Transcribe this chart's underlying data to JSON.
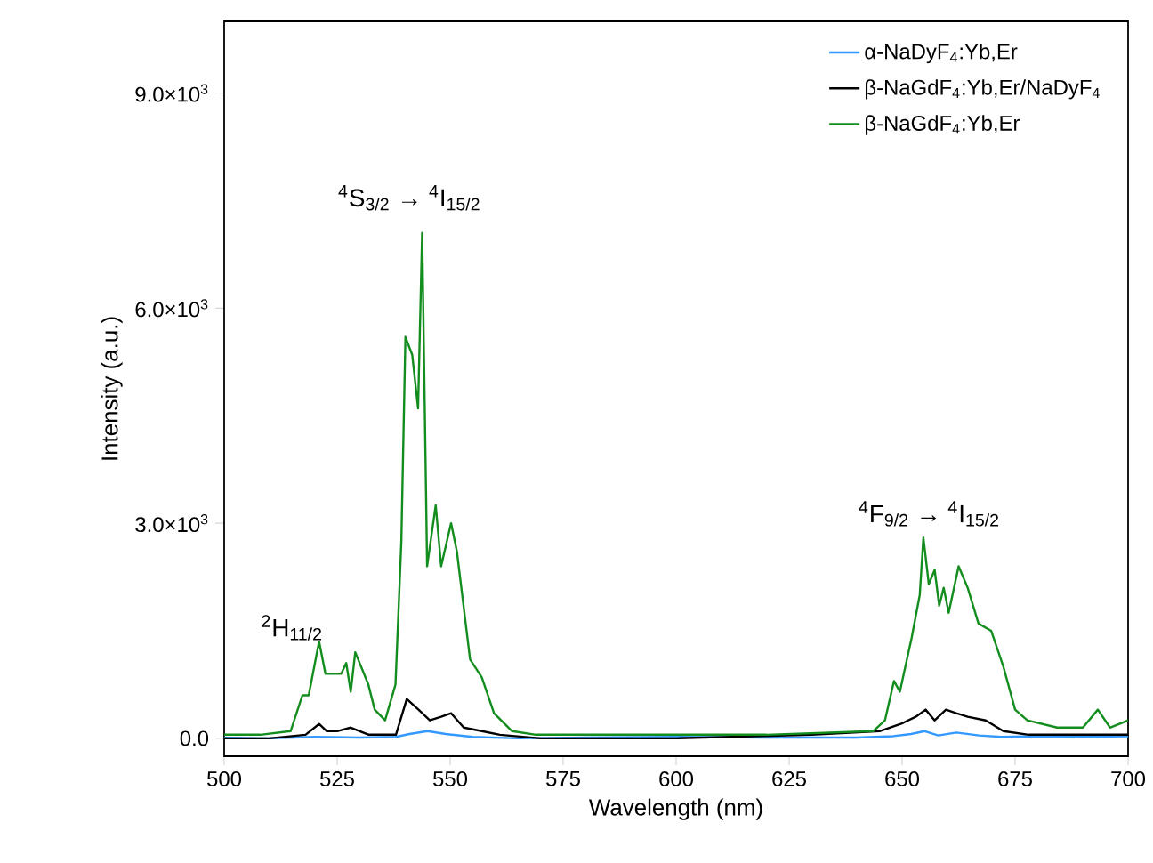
{
  "chart_data": {
    "type": "line",
    "xlabel": "Wavelength (nm)",
    "ylabel": "Intensity (a.u.)",
    "xlim": [
      500,
      700
    ],
    "xticks": [
      500,
      525,
      550,
      575,
      600,
      625,
      650,
      675,
      700
    ],
    "ylim": [
      -250,
      10000
    ],
    "yticks": [
      {
        "value": 0,
        "label": "0.0"
      },
      {
        "value": 3000,
        "label": "3.0×10$^{3}$"
      },
      {
        "value": 6000,
        "label": "6.0×10$^{3}$"
      },
      {
        "value": 9000,
        "label": "9.0×10$^{3}$"
      }
    ],
    "legend": "top right",
    "grid": false,
    "marker": "none",
    "line_style": "solid",
    "series": [
      {
        "name": "α-NaDyF$_{4}$:Yb,Er",
        "color": "#3399ff",
        "x": [
          500,
          510,
          520,
          530,
          538,
          541,
          545,
          549,
          555,
          565,
          580,
          600,
          620,
          640,
          648,
          652,
          655,
          658,
          662,
          667,
          672,
          680,
          690,
          700
        ],
        "values": [
          10,
          0,
          20,
          10,
          20,
          60,
          100,
          60,
          20,
          0,
          10,
          20,
          10,
          10,
          30,
          60,
          100,
          40,
          80,
          40,
          20,
          30,
          20,
          30
        ]
      },
      {
        "name": "β-NaGdF$_{4}$:Yb,Er/NaDyF$_{4}$",
        "color": "#000000",
        "x": [
          500,
          510,
          518,
          521,
          522.7,
          525,
          528,
          532,
          538,
          540.4,
          543,
          545.5,
          548,
          550.2,
          553,
          557,
          561,
          570,
          600,
          630,
          645,
          649.7,
          653,
          655.2,
          657.2,
          659.7,
          662,
          664.5,
          668.5,
          672.4,
          678,
          690,
          700
        ],
        "values": [
          0,
          0,
          50,
          200,
          100,
          100,
          150,
          50,
          50,
          550,
          400,
          250,
          300,
          350,
          150,
          100,
          50,
          0,
          0,
          50,
          100,
          200,
          300,
          400,
          250,
          400,
          350,
          300,
          250,
          100,
          50,
          50,
          50
        ]
      },
      {
        "name": "β-NaGdF$_{4}$:Yb,Er",
        "color": "#138d1e",
        "x": [
          500,
          508,
          514.7,
          517.3,
          518.7,
          521,
          522.4,
          525.9,
          527,
          528,
          529,
          531.9,
          533.3,
          535.6,
          537.9,
          539.2,
          540.1,
          541.6,
          542.9,
          543.8,
          544.9,
          546.8,
          548,
          550.2,
          551.5,
          554.4,
          557,
          559.7,
          563.7,
          569,
          580,
          600,
          620,
          643.6,
          646.2,
          648.2,
          649.5,
          652.1,
          653.9,
          654.7,
          655.9,
          657.2,
          658.2,
          659.2,
          660.3,
          662.5,
          664.5,
          666.9,
          669.7,
          672.4,
          675,
          677.7,
          684.3,
          690,
          693.3,
          696,
          700
        ],
        "values": [
          50,
          50,
          100,
          600,
          600,
          1350,
          900,
          900,
          1050,
          650,
          1200,
          750,
          400,
          250,
          750,
          2750,
          5600,
          5350,
          4600,
          7050,
          2400,
          3250,
          2400,
          3000,
          2600,
          1100,
          850,
          350,
          100,
          50,
          50,
          50,
          50,
          100,
          250,
          800,
          650,
          1400,
          2000,
          2800,
          2150,
          2350,
          1850,
          2100,
          1750,
          2400,
          2100,
          1600,
          1500,
          1000,
          400,
          250,
          150,
          150,
          400,
          150,
          250
        ]
      }
    ],
    "annotations": [
      "$^{4}$S$_{3/2}$ → $^{4}$I$_{15/2}$",
      "$^{2}$H$_{11/2}$",
      "$^{4}$F$_{9/2}$ → $^{4}$I$_{15/2}$"
    ]
  }
}
